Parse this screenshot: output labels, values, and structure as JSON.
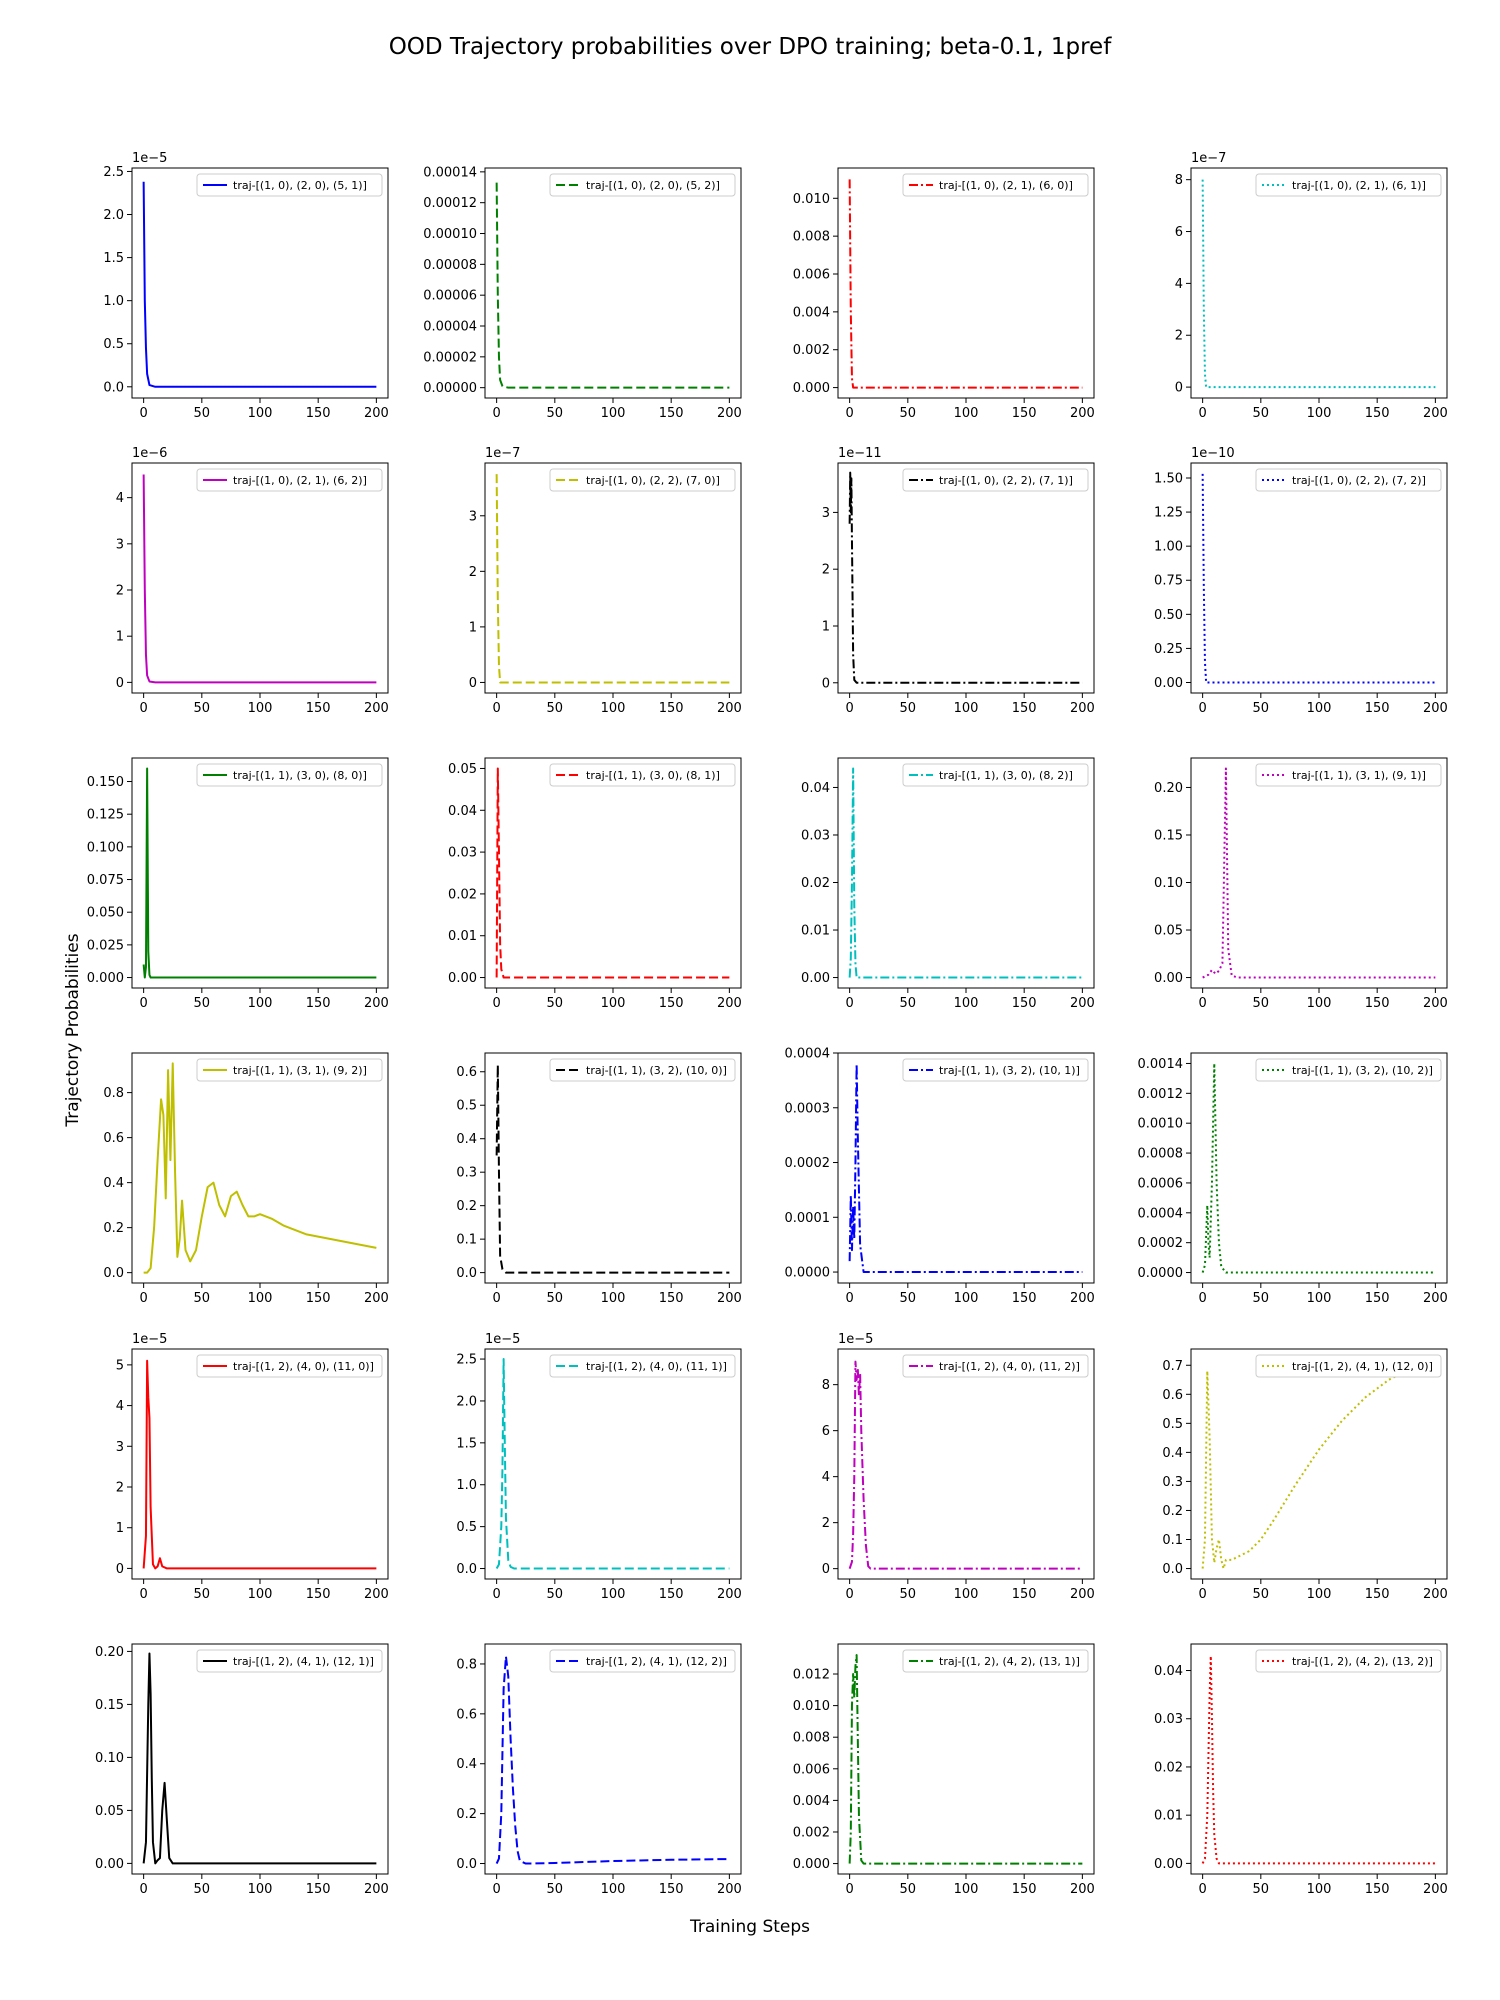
{
  "figure": {
    "title": "OOD Trajectory probabilities over DPO training; beta-0.1, 1pref",
    "xlabel": "Training Steps",
    "ylabel": "Trajectory Probabilities"
  },
  "chart_data": [
    {
      "type": "line",
      "legend": "traj-[(1, 0), (2, 0), (5, 1)]",
      "color": "#0000ff",
      "dash": "solid",
      "multiplier": "1e−5",
      "yticks": [
        "0.0",
        "0.5",
        "1.0",
        "1.5",
        "2.0",
        "2.5"
      ],
      "ylim": [
        -0.13,
        2.54
      ],
      "xlim": [
        -10,
        210
      ],
      "xticks": [
        "0",
        "50",
        "100",
        "150",
        "200"
      ],
      "x": [
        0,
        1,
        2,
        3,
        5,
        10,
        200
      ],
      "y": [
        2.38,
        1.0,
        0.45,
        0.15,
        0.02,
        0.0,
        0.0
      ]
    },
    {
      "type": "line",
      "legend": "traj-[(1, 0), (2, 0), (5, 2)]",
      "color": "#008000",
      "dash": "dashed",
      "multiplier": "",
      "yticks": [
        "0.00000",
        "0.00002",
        "0.00004",
        "0.00006",
        "0.00008",
        "0.00010",
        "0.00012",
        "0.00014"
      ],
      "ylim": [
        -6.7e-06,
        0.0001425
      ],
      "xlim": [
        -10,
        210
      ],
      "xticks": [
        "0",
        "50",
        "100",
        "150",
        "200"
      ],
      "x": [
        0,
        1,
        2,
        3,
        5,
        10,
        200
      ],
      "y": [
        0.000133,
        6e-05,
        2e-05,
        5e-06,
        1e-06,
        0.0,
        0.0
      ]
    },
    {
      "type": "line",
      "legend": "traj-[(1, 0), (2, 1), (6, 0)]",
      "color": "#ff0000",
      "dash": "dashdot",
      "multiplier": "",
      "yticks": [
        "0.000",
        "0.002",
        "0.004",
        "0.006",
        "0.008",
        "0.010"
      ],
      "ylim": [
        -0.00055,
        0.0116
      ],
      "xlim": [
        -10,
        210
      ],
      "xticks": [
        "0",
        "50",
        "100",
        "150",
        "200"
      ],
      "x": [
        0,
        1,
        2,
        3,
        5,
        200
      ],
      "y": [
        0.011,
        0.004,
        0.0005,
        0.0,
        0.0,
        0.0
      ]
    },
    {
      "type": "line",
      "legend": "traj-[(1, 0), (2, 1), (6, 1)]",
      "color": "#00bfbf",
      "dash": "dotted",
      "multiplier": "1e−7",
      "yticks": [
        "0",
        "2",
        "4",
        "6",
        "8"
      ],
      "ylim": [
        -0.42,
        8.45
      ],
      "xlim": [
        -10,
        210
      ],
      "xticks": [
        "0",
        "50",
        "100",
        "150",
        "200"
      ],
      "x": [
        0,
        1,
        2,
        3,
        5,
        200
      ],
      "y": [
        8.0,
        3.0,
        0.5,
        0.0,
        0.0,
        0.0
      ]
    },
    {
      "type": "line",
      "legend": "traj-[(1, 0), (2, 1), (6, 2)]",
      "color": "#bf00bf",
      "dash": "solid",
      "multiplier": "1e−6",
      "yticks": [
        "0",
        "1",
        "2",
        "3",
        "4"
      ],
      "ylim": [
        -0.23,
        4.75
      ],
      "xlim": [
        -10,
        210
      ],
      "xticks": [
        "0",
        "50",
        "100",
        "150",
        "200"
      ],
      "x": [
        0,
        1,
        2,
        3,
        5,
        10,
        200
      ],
      "y": [
        4.5,
        2.0,
        0.6,
        0.15,
        0.02,
        0.0,
        0.0
      ]
    },
    {
      "type": "line",
      "legend": "traj-[(1, 0), (2, 2), (7, 0)]",
      "color": "#bfbf00",
      "dash": "dashed",
      "multiplier": "1e−7",
      "yticks": [
        "0",
        "1",
        "2",
        "3"
      ],
      "ylim": [
        -0.19,
        3.95
      ],
      "xlim": [
        -10,
        210
      ],
      "xticks": [
        "0",
        "50",
        "100",
        "150",
        "200"
      ],
      "x": [
        0,
        1,
        2,
        3,
        5,
        200
      ],
      "y": [
        3.75,
        1.5,
        0.3,
        0.0,
        0.0,
        0.0
      ]
    },
    {
      "type": "line",
      "legend": "traj-[(1, 0), (2, 2), (7, 1)]",
      "color": "#000000",
      "dash": "dashdot",
      "multiplier": "1e−11",
      "yticks": [
        "0",
        "1",
        "2",
        "3"
      ],
      "ylim": [
        -0.18,
        3.87
      ],
      "xlim": [
        -10,
        210
      ],
      "xticks": [
        "0",
        "50",
        "100",
        "150",
        "200"
      ],
      "x": [
        0,
        0.5,
        1,
        1.5,
        2,
        2.5,
        3,
        4,
        6,
        200
      ],
      "y": [
        2.8,
        3.7,
        3.0,
        3.6,
        2.5,
        1.5,
        0.5,
        0.05,
        0.0,
        0.0
      ]
    },
    {
      "type": "line",
      "legend": "traj-[(1, 0), (2, 2), (7, 2)]",
      "color": "#0000ff",
      "dash": "dotted",
      "multiplier": "1e−10",
      "yticks": [
        "0.00",
        "0.25",
        "0.50",
        "0.75",
        "1.00",
        "1.25",
        "1.50"
      ],
      "ylim": [
        -0.077,
        1.61
      ],
      "xlim": [
        -10,
        210
      ],
      "xticks": [
        "0",
        "50",
        "100",
        "150",
        "200"
      ],
      "x": [
        0,
        1,
        2,
        3,
        5,
        200
      ],
      "y": [
        1.53,
        0.7,
        0.15,
        0.0,
        0.0,
        0.0
      ]
    },
    {
      "type": "line",
      "legend": "traj-[(1, 1), (3, 0), (8, 0)]",
      "color": "#008000",
      "dash": "solid",
      "multiplier": "",
      "yticks": [
        "0.000",
        "0.025",
        "0.050",
        "0.075",
        "0.100",
        "0.125",
        "0.150"
      ],
      "ylim": [
        -0.008,
        0.168
      ],
      "xlim": [
        -10,
        210
      ],
      "xticks": [
        "0",
        "50",
        "100",
        "150",
        "200"
      ],
      "x": [
        0,
        1,
        2,
        3,
        4,
        5,
        6,
        8,
        200
      ],
      "y": [
        0.01,
        0.0,
        0.008,
        0.16,
        0.02,
        0.002,
        0.0,
        0.0,
        0.0
      ]
    },
    {
      "type": "line",
      "legend": "traj-[(1, 1), (3, 0), (8, 1)]",
      "color": "#ff0000",
      "dash": "dashed",
      "multiplier": "",
      "yticks": [
        "0.00",
        "0.01",
        "0.02",
        "0.03",
        "0.04",
        "0.05"
      ],
      "ylim": [
        -0.0025,
        0.0525
      ],
      "xlim": [
        -10,
        210
      ],
      "xticks": [
        "0",
        "50",
        "100",
        "150",
        "200"
      ],
      "x": [
        0,
        1,
        2,
        3,
        4,
        6,
        8,
        200
      ],
      "y": [
        0.0,
        0.05,
        0.03,
        0.008,
        0.002,
        0.0,
        0.0,
        0.0
      ]
    },
    {
      "type": "line",
      "legend": "traj-[(1, 1), (3, 0), (8, 2)]",
      "color": "#00bfbf",
      "dash": "dashdot",
      "multiplier": "",
      "yticks": [
        "0.00",
        "0.01",
        "0.02",
        "0.03",
        "0.04"
      ],
      "ylim": [
        -0.0022,
        0.0462
      ],
      "xlim": [
        -10,
        210
      ],
      "xticks": [
        "0",
        "50",
        "100",
        "150",
        "200"
      ],
      "x": [
        0,
        1,
        2,
        3,
        4,
        5,
        6,
        8,
        200
      ],
      "y": [
        0.0,
        0.004,
        0.02,
        0.044,
        0.015,
        0.003,
        0.0,
        0.0,
        0.0
      ]
    },
    {
      "type": "line",
      "legend": "traj-[(1, 1), (3, 1), (9, 1)]",
      "color": "#bf00bf",
      "dash": "dotted",
      "multiplier": "",
      "yticks": [
        "0.00",
        "0.05",
        "0.10",
        "0.15",
        "0.20"
      ],
      "ylim": [
        -0.011,
        0.231
      ],
      "xlim": [
        -10,
        210
      ],
      "xticks": [
        "0",
        "50",
        "100",
        "150",
        "200"
      ],
      "x": [
        0,
        5,
        8,
        11,
        14,
        17,
        20,
        22,
        25,
        30,
        200
      ],
      "y": [
        0.0,
        0.003,
        0.008,
        0.004,
        0.007,
        0.015,
        0.22,
        0.03,
        0.002,
        0.0,
        0.0
      ]
    },
    {
      "type": "line",
      "legend": "traj-[(1, 1), (3, 1), (9, 2)]",
      "color": "#bfbf00",
      "dash": "solid",
      "multiplier": "",
      "yticks": [
        "0.0",
        "0.2",
        "0.4",
        "0.6",
        "0.8"
      ],
      "ylim": [
        -0.046,
        0.976
      ],
      "xlim": [
        -10,
        210
      ],
      "xticks": [
        "0",
        "50",
        "100",
        "150",
        "200"
      ],
      "x": [
        0,
        3,
        6,
        9,
        12,
        15,
        17,
        19,
        21,
        23,
        25,
        27,
        29,
        31,
        33,
        36,
        40,
        45,
        50,
        55,
        60,
        65,
        70,
        75,
        80,
        85,
        90,
        95,
        100,
        110,
        120,
        130,
        140,
        150,
        160,
        170,
        180,
        190,
        200
      ],
      "y": [
        0.0,
        0.0,
        0.02,
        0.2,
        0.5,
        0.77,
        0.7,
        0.33,
        0.9,
        0.5,
        0.93,
        0.45,
        0.07,
        0.15,
        0.32,
        0.1,
        0.05,
        0.1,
        0.25,
        0.38,
        0.4,
        0.3,
        0.25,
        0.34,
        0.36,
        0.3,
        0.25,
        0.25,
        0.26,
        0.24,
        0.21,
        0.19,
        0.17,
        0.16,
        0.15,
        0.14,
        0.13,
        0.12,
        0.11
      ]
    },
    {
      "type": "line",
      "legend": "traj-[(1, 1), (3, 2), (10, 0)]",
      "color": "#000000",
      "dash": "dashed",
      "multiplier": "",
      "yticks": [
        "0.0",
        "0.1",
        "0.2",
        "0.3",
        "0.4",
        "0.5",
        "0.6"
      ],
      "ylim": [
        -0.031,
        0.656
      ],
      "xlim": [
        -10,
        210
      ],
      "xticks": [
        "0",
        "50",
        "100",
        "150",
        "200"
      ],
      "x": [
        0,
        1,
        2,
        3,
        5,
        8,
        200
      ],
      "y": [
        0.35,
        0.62,
        0.3,
        0.05,
        0.01,
        0.0,
        0.0
      ]
    },
    {
      "type": "line",
      "legend": "traj-[(1, 1), (3, 2), (10, 1)]",
      "color": "#0000ff",
      "dash": "dashdot",
      "multiplier": "",
      "yticks": [
        "0.0000",
        "0.0001",
        "0.0002",
        "0.0003",
        "0.0004"
      ],
      "ylim": [
        -2e-05,
        0.0004
      ],
      "xlim": [
        -10,
        210
      ],
      "xticks": [
        "0",
        "50",
        "100",
        "150",
        "200"
      ],
      "x": [
        0,
        1,
        2,
        3,
        4,
        5,
        6,
        7,
        9,
        12,
        200
      ],
      "y": [
        2e-05,
        0.00014,
        4e-05,
        0.00012,
        6e-05,
        0.0002,
        0.00038,
        0.00025,
        5e-05,
        0.0,
        0.0
      ]
    },
    {
      "type": "line",
      "legend": "traj-[(1, 1), (3, 2), (10, 2)]",
      "color": "#008000",
      "dash": "dotted",
      "multiplier": "",
      "yticks": [
        "0.0000",
        "0.0002",
        "0.0004",
        "0.0006",
        "0.0008",
        "0.0010",
        "0.0012",
        "0.0014"
      ],
      "ylim": [
        -7e-05,
        0.00147
      ],
      "xlim": [
        -10,
        210
      ],
      "xticks": [
        "0",
        "50",
        "100",
        "150",
        "200"
      ],
      "x": [
        0,
        2,
        4,
        5,
        6,
        8,
        10,
        12,
        14,
        16,
        20,
        200
      ],
      "y": [
        0.0,
        5e-05,
        0.00045,
        0.0002,
        0.0001,
        0.0006,
        0.0014,
        0.0006,
        0.0002,
        4e-05,
        0.0,
        0.0
      ]
    },
    {
      "type": "line",
      "legend": "traj-[(1, 2), (4, 0), (11, 0)]",
      "color": "#ff0000",
      "dash": "solid",
      "multiplier": "1e−5",
      "yticks": [
        "0",
        "1",
        "2",
        "3",
        "4",
        "5"
      ],
      "ylim": [
        -0.26,
        5.39
      ],
      "xlim": [
        -10,
        210
      ],
      "xticks": [
        "0",
        "50",
        "100",
        "150",
        "200"
      ],
      "x": [
        0,
        2,
        3,
        4,
        5,
        6,
        8,
        10,
        12,
        14,
        16,
        20,
        200
      ],
      "y": [
        0.0,
        0.8,
        5.1,
        4.2,
        3.7,
        1.5,
        0.1,
        0.0,
        0.05,
        0.25,
        0.05,
        0.0,
        0.0
      ]
    },
    {
      "type": "line",
      "legend": "traj-[(1, 2), (4, 0), (11, 1)]",
      "color": "#00bfbf",
      "dash": "dashed",
      "multiplier": "1e−5",
      "yticks": [
        "0.0",
        "0.5",
        "1.0",
        "1.5",
        "2.0",
        "2.5"
      ],
      "ylim": [
        -0.125,
        2.62
      ],
      "xlim": [
        -10,
        210
      ],
      "xticks": [
        "0",
        "50",
        "100",
        "150",
        "200"
      ],
      "x": [
        0,
        2,
        4,
        5,
        6,
        7,
        8,
        10,
        12,
        15,
        200
      ],
      "y": [
        0.0,
        0.05,
        0.5,
        1.2,
        2.5,
        1.5,
        0.6,
        0.1,
        0.02,
        0.0,
        0.0
      ]
    },
    {
      "type": "line",
      "legend": "traj-[(1, 2), (4, 0), (11, 2)]",
      "color": "#bf00bf",
      "dash": "dashdot",
      "multiplier": "1e−5",
      "yticks": [
        "0",
        "2",
        "4",
        "6",
        "8"
      ],
      "ylim": [
        -0.45,
        9.55
      ],
      "xlim": [
        -10,
        210
      ],
      "xticks": [
        "0",
        "50",
        "100",
        "150",
        "200"
      ],
      "x": [
        0,
        2,
        3,
        4,
        5,
        6,
        7,
        8,
        9,
        10,
        12,
        14,
        16,
        18,
        200
      ],
      "y": [
        0.0,
        0.3,
        1.5,
        4.0,
        9.0,
        8.2,
        8.7,
        7.5,
        8.5,
        6.0,
        3.0,
        1.0,
        0.1,
        0.0,
        0.0
      ]
    },
    {
      "type": "line",
      "legend": "traj-[(1, 2), (4, 1), (12, 0)]",
      "color": "#bfbf00",
      "dash": "dotted",
      "multiplier": "",
      "yticks": [
        "0.0",
        "0.1",
        "0.2",
        "0.3",
        "0.4",
        "0.5",
        "0.6",
        "0.7"
      ],
      "ylim": [
        -0.036,
        0.756
      ],
      "xlim": [
        -10,
        210
      ],
      "xticks": [
        "0",
        "50",
        "100",
        "150",
        "200"
      ],
      "x": [
        0,
        2,
        4,
        6,
        8,
        10,
        12,
        14,
        16,
        18,
        20,
        25,
        30,
        40,
        50,
        60,
        80,
        100,
        120,
        140,
        160,
        180,
        200
      ],
      "y": [
        0.0,
        0.1,
        0.68,
        0.45,
        0.1,
        0.02,
        0.07,
        0.1,
        0.03,
        0.0,
        0.03,
        0.03,
        0.04,
        0.06,
        0.1,
        0.16,
        0.29,
        0.41,
        0.51,
        0.59,
        0.65,
        0.69,
        0.71
      ]
    },
    {
      "type": "line",
      "legend": "traj-[(1, 2), (4, 1), (12, 1)]",
      "color": "#000000",
      "dash": "solid",
      "multiplier": "",
      "yticks": [
        "0.00",
        "0.05",
        "0.10",
        "0.15",
        "0.20"
      ],
      "ylim": [
        -0.01,
        0.207
      ],
      "xlim": [
        -10,
        210
      ],
      "xticks": [
        "0",
        "50",
        "100",
        "150",
        "200"
      ],
      "x": [
        0,
        2,
        4,
        5,
        6,
        7,
        8,
        10,
        12,
        14,
        16,
        18,
        20,
        22,
        25,
        200
      ],
      "y": [
        0.0,
        0.02,
        0.15,
        0.198,
        0.16,
        0.08,
        0.02,
        0.0,
        0.003,
        0.005,
        0.05,
        0.076,
        0.04,
        0.005,
        0.0,
        0.0
      ]
    },
    {
      "type": "line",
      "legend": "traj-[(1, 2), (4, 1), (12, 2)]",
      "color": "#0000ff",
      "dash": "dashed",
      "multiplier": "",
      "yticks": [
        "0.0",
        "0.2",
        "0.4",
        "0.6",
        "0.8"
      ],
      "ylim": [
        -0.042,
        0.88
      ],
      "xlim": [
        -10,
        210
      ],
      "xticks": [
        "0",
        "50",
        "100",
        "150",
        "200"
      ],
      "x": [
        0,
        2,
        4,
        6,
        8,
        10,
        12,
        14,
        16,
        18,
        20,
        25,
        30,
        50,
        100,
        150,
        200
      ],
      "y": [
        0.0,
        0.02,
        0.2,
        0.7,
        0.83,
        0.75,
        0.5,
        0.3,
        0.15,
        0.05,
        0.01,
        0.0,
        0.0,
        0.002,
        0.01,
        0.015,
        0.018
      ]
    },
    {
      "type": "line",
      "legend": "traj-[(1, 2), (4, 2), (13, 1)]",
      "color": "#008000",
      "dash": "dashdot",
      "multiplier": "",
      "yticks": [
        "0.000",
        "0.002",
        "0.004",
        "0.006",
        "0.008",
        "0.010",
        "0.012"
      ],
      "ylim": [
        -0.00066,
        0.0139
      ],
      "xlim": [
        -10,
        210
      ],
      "xticks": [
        "0",
        "50",
        "100",
        "150",
        "200"
      ],
      "x": [
        0,
        1,
        2,
        3,
        4,
        5,
        6,
        7,
        8,
        10,
        12,
        200
      ],
      "y": [
        0.0,
        0.002,
        0.01,
        0.012,
        0.0105,
        0.0125,
        0.0132,
        0.008,
        0.003,
        0.0002,
        0.0,
        0.0
      ]
    },
    {
      "type": "line",
      "legend": "traj-[(1, 2), (4, 2), (13, 2)]",
      "color": "#ff0000",
      "dash": "dotted",
      "multiplier": "",
      "yticks": [
        "0.00",
        "0.01",
        "0.02",
        "0.03",
        "0.04"
      ],
      "ylim": [
        -0.0022,
        0.0455
      ],
      "xlim": [
        -10,
        210
      ],
      "xticks": [
        "0",
        "50",
        "100",
        "150",
        "200"
      ],
      "x": [
        0,
        2,
        4,
        6,
        7,
        8,
        9,
        10,
        12,
        14,
        16,
        200
      ],
      "y": [
        0.0,
        0.001,
        0.01,
        0.035,
        0.043,
        0.03,
        0.015,
        0.006,
        0.001,
        0.0,
        0.0,
        0.0
      ]
    }
  ]
}
